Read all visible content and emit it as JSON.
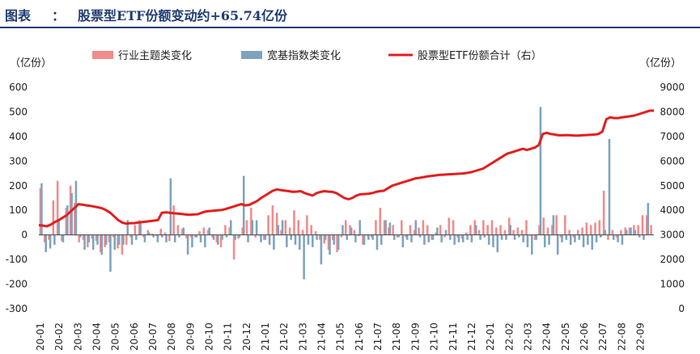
{
  "header": {
    "label": "图表",
    "colon": "：",
    "title": "股票型ETF份额变动约+65.74亿份"
  },
  "colors": {
    "theme_bar": "#f28b8b",
    "broad_bar": "#7ea3bd",
    "total_line": "#e31e1e",
    "title": "#1f3b73"
  },
  "chart_data": {
    "type": "bar",
    "left_unit": "（亿份）",
    "right_unit": "（亿份）",
    "ylim_left": [
      -300,
      600
    ],
    "ylim_right": [
      0,
      9000
    ],
    "left_ticks": [
      600,
      500,
      400,
      300,
      200,
      100,
      0,
      -100,
      -200,
      -300
    ],
    "right_ticks": [
      9000,
      8000,
      7000,
      6000,
      5000,
      4000,
      3000,
      2000,
      1000,
      0
    ],
    "x_tick_labels": [
      "20-01",
      "20-02",
      "20-03",
      "20-04",
      "20-05",
      "20-06",
      "20-07",
      "20-08",
      "20-09",
      "20-10",
      "20-11",
      "20-12",
      "21-01",
      "21-02",
      "21-03",
      "21-04",
      "21-05",
      "21-06",
      "21-07",
      "21-08",
      "21-09",
      "21-10",
      "21-11",
      "21-12",
      "22-01",
      "22-02",
      "22-03",
      "22-04",
      "22-05",
      "22-06",
      "22-07",
      "22-08",
      "22-09"
    ],
    "legend": [
      "行业主题类变化",
      "宽基指数类变化",
      "股票型ETF份额合计（右）"
    ],
    "series": [
      {
        "name": "行业主题类变化",
        "axis": "left",
        "values": [
          190,
          -30,
          -20,
          140,
          220,
          -25,
          110,
          200,
          130,
          -30,
          -20,
          -50,
          -15,
          -25,
          -70,
          -50,
          -30,
          -10,
          -55,
          -80,
          -40,
          -10,
          40,
          60,
          -10,
          20,
          5,
          -5,
          25,
          10,
          -25,
          120,
          40,
          25,
          -15,
          -10,
          -10,
          15,
          30,
          20,
          -10,
          -30,
          -50,
          40,
          30,
          -100,
          -15,
          30,
          60,
          110,
          -10,
          -5,
          -20,
          80,
          120,
          90,
          20,
          60,
          30,
          100,
          60,
          20,
          80,
          40,
          15,
          -20,
          -35,
          -60,
          -20,
          -70,
          -10,
          60,
          40,
          20,
          -5,
          -40,
          -5,
          -10,
          60,
          110,
          60,
          30,
          40,
          -10,
          60,
          -10,
          40,
          20,
          30,
          60,
          40,
          -20,
          10,
          40,
          -10,
          70,
          60,
          -10,
          -15,
          10,
          40,
          60,
          20,
          60,
          40,
          60,
          30,
          40,
          20,
          70,
          20,
          30,
          20,
          60,
          -5,
          -20,
          40,
          70,
          30,
          40,
          80,
          -10,
          80,
          20,
          -10,
          20,
          30,
          50,
          40,
          50,
          60,
          180,
          -20,
          20,
          -10,
          20,
          30,
          30,
          40,
          40,
          80,
          80,
          40
        ],
        "note": "approximate weekly bar heights read off the left axis"
      },
      {
        "name": "宽基指数类变化",
        "axis": "left",
        "values": [
          210,
          -70,
          -55,
          -40,
          60,
          -30,
          120,
          170,
          220,
          -10,
          -60,
          -30,
          -60,
          -40,
          -80,
          -40,
          -150,
          -60,
          -40,
          -40,
          60,
          -40,
          -20,
          50,
          -30,
          10,
          -10,
          -30,
          -10,
          -30,
          230,
          -30,
          -10,
          30,
          -80,
          -50,
          -10,
          -30,
          -50,
          30,
          -20,
          -40,
          -20,
          -10,
          60,
          -20,
          -10,
          240,
          -30,
          60,
          60,
          -30,
          -20,
          -40,
          -60,
          40,
          60,
          -50,
          -20,
          -40,
          -60,
          -180,
          -40,
          -50,
          -20,
          -120,
          -20,
          -80,
          -40,
          -60,
          40,
          -20,
          30,
          -30,
          60,
          -40,
          -20,
          -20,
          -60,
          -40,
          60,
          50,
          -20,
          -10,
          -50,
          -20,
          -30,
          60,
          -10,
          -40,
          -30,
          -20,
          30,
          -30,
          20,
          -20,
          -40,
          -30,
          -30,
          -20,
          -30,
          40,
          -20,
          -10,
          -40,
          -50,
          -70,
          -20,
          -20,
          40,
          -20,
          -10,
          -30,
          -50,
          -80,
          -20,
          520,
          -50,
          -40,
          80,
          -80,
          -30,
          -20,
          -40,
          -30,
          -20,
          -50,
          -40,
          -60,
          -30,
          -10,
          20,
          390,
          -20,
          -30,
          -40,
          20,
          30,
          20,
          -10,
          -20,
          130
        ],
        "note": "approximate weekly bar heights read off the left axis"
      },
      {
        "name": "股票型ETF份额合计（右）",
        "axis": "right",
        "values": [
          3400,
          3380,
          3350,
          3420,
          3520,
          3600,
          3700,
          3800,
          3950,
          4100,
          4250,
          4230,
          4200,
          4180,
          4150,
          4120,
          4080,
          4000,
          3900,
          3750,
          3600,
          3500,
          3460,
          3480,
          3480,
          3500,
          3520,
          3540,
          3560,
          3580,
          3600,
          3900,
          3920,
          3900,
          3880,
          3870,
          3850,
          3830,
          3820,
          3830,
          3840,
          3900,
          3950,
          3970,
          3980,
          4000,
          4010,
          4050,
          4100,
          4150,
          4200,
          4250,
          4200,
          4220,
          4300,
          4380,
          4500,
          4600,
          4700,
          4800,
          4850,
          4820,
          4800,
          4780,
          4750,
          4760,
          4780,
          4700,
          4650,
          4600,
          4700,
          4750,
          4780,
          4760,
          4750,
          4700,
          4600,
          4500,
          4450,
          4500,
          4600,
          4650,
          4660,
          4670,
          4700,
          4750,
          4780,
          4800,
          4900,
          5000,
          5050,
          5100,
          5150,
          5200,
          5250,
          5300,
          5320,
          5350,
          5380,
          5400,
          5420,
          5440,
          5450,
          5460,
          5470,
          5480,
          5490,
          5500,
          5520,
          5550,
          5600,
          5650,
          5700,
          5800,
          5900,
          6000,
          6100,
          6200,
          6300,
          6350,
          6400,
          6450,
          6500,
          6450,
          6500,
          6550,
          6650,
          7100,
          7150,
          7100,
          7080,
          7050,
          7050,
          7060,
          7050,
          7040,
          7040,
          7050,
          7060,
          7070,
          7080,
          7100,
          7200,
          7700,
          7780,
          7750,
          7750,
          7780,
          7800,
          7820,
          7850,
          7900,
          7950,
          8000,
          8050,
          8050
        ],
        "note": "approximate total on the right axis"
      }
    ]
  }
}
